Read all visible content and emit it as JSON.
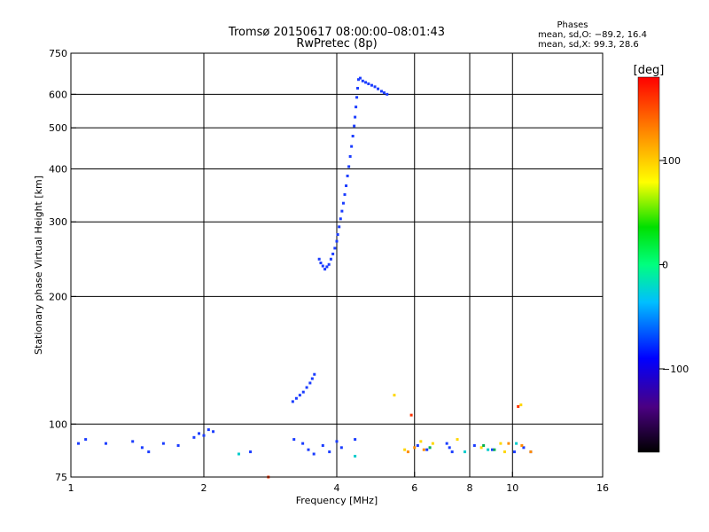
{
  "chart_data": {
    "type": "scatter",
    "title": "Tromsø 20150617 08:00:00–08:01:43",
    "subtitle": "RwPretec (8p)",
    "phases_header": {
      "title": "Phases",
      "line1": "mean, sd,O: −89.2, 16.4",
      "line2": "mean, sd,X:  99.3, 28.6"
    },
    "xlabel": "Frequency [MHz]",
    "ylabel": "Stationary phase Virtual Height [km]",
    "x_scale": "log",
    "y_scale": "log",
    "xlim": [
      1,
      16
    ],
    "ylim": [
      75,
      750
    ],
    "x_ticks": [
      1,
      2,
      4,
      6,
      8,
      10,
      16
    ],
    "x_tick_labels": [
      "1",
      "2",
      "4",
      "6",
      "8",
      "10",
      "16"
    ],
    "y_ticks": [
      75,
      100,
      200,
      300,
      400,
      500,
      600,
      750
    ],
    "y_tick_labels": [
      "75",
      "100",
      "200",
      "300",
      "400",
      "500",
      "600",
      "750"
    ],
    "grid": true,
    "colorbar": {
      "label": "[deg]",
      "range": [
        -180,
        180
      ],
      "tick_values": [
        100,
        0,
        -100
      ],
      "tick_labels": [
        "100",
        "0",
        "−100"
      ]
    },
    "traces": [
      {
        "color": "#1a3cff",
        "points": [
          [
            3.65,
            245
          ],
          [
            3.68,
            240
          ],
          [
            3.72,
            236
          ],
          [
            3.76,
            232
          ],
          [
            3.8,
            235
          ],
          [
            3.84,
            238
          ],
          [
            3.88,
            245
          ],
          [
            3.92,
            252
          ],
          [
            3.96,
            260
          ],
          [
            4.0,
            270
          ],
          [
            4.02,
            280
          ],
          [
            4.05,
            292
          ],
          [
            4.08,
            305
          ],
          [
            4.11,
            318
          ],
          [
            4.14,
            332
          ],
          [
            4.17,
            348
          ],
          [
            4.2,
            365
          ],
          [
            4.23,
            385
          ],
          [
            4.26,
            405
          ],
          [
            4.29,
            428
          ],
          [
            4.32,
            452
          ],
          [
            4.35,
            478
          ],
          [
            4.38,
            505
          ],
          [
            4.4,
            530
          ],
          [
            4.42,
            560
          ],
          [
            4.44,
            590
          ],
          [
            4.46,
            620
          ],
          [
            4.48,
            650
          ],
          [
            4.52,
            655
          ],
          [
            4.58,
            645
          ],
          [
            4.65,
            640
          ],
          [
            4.72,
            635
          ],
          [
            4.8,
            630
          ],
          [
            4.88,
            625
          ],
          [
            4.96,
            618
          ],
          [
            5.05,
            610
          ],
          [
            5.12,
            605
          ],
          [
            5.2,
            600
          ]
        ]
      },
      {
        "color": "#1a3cff",
        "points": [
          [
            3.18,
            113
          ],
          [
            3.24,
            115
          ],
          [
            3.3,
            117
          ],
          [
            3.36,
            119
          ],
          [
            3.42,
            122
          ],
          [
            3.48,
            125
          ],
          [
            3.52,
            128
          ],
          [
            3.56,
            131
          ]
        ]
      },
      {
        "color": "#1a3cff",
        "points": [
          [
            1.04,
            90
          ],
          [
            1.08,
            92
          ],
          [
            1.2,
            90
          ],
          [
            1.38,
            91
          ],
          [
            1.45,
            88
          ],
          [
            1.5,
            86
          ],
          [
            1.62,
            90
          ],
          [
            1.75,
            89
          ],
          [
            1.9,
            93
          ],
          [
            1.95,
            95
          ],
          [
            2.0,
            94
          ],
          [
            2.05,
            97
          ],
          [
            2.1,
            96
          ],
          [
            2.55,
            86
          ],
          [
            3.2,
            92
          ],
          [
            3.35,
            90
          ],
          [
            3.45,
            87
          ],
          [
            3.55,
            85
          ],
          [
            3.72,
            89
          ],
          [
            3.85,
            86
          ],
          [
            4.0,
            91
          ],
          [
            4.1,
            88
          ],
          [
            4.4,
            92
          ],
          [
            6.1,
            89
          ],
          [
            6.4,
            87
          ],
          [
            7.1,
            90
          ],
          [
            7.2,
            88
          ],
          [
            7.3,
            86
          ],
          [
            8.2,
            89
          ],
          [
            9.0,
            87
          ],
          [
            10.1,
            86
          ],
          [
            10.6,
            88
          ],
          [
            11.0,
            86
          ]
        ]
      },
      {
        "color": "#ff8c00",
        "points": [
          [
            5.8,
            86
          ],
          [
            6.0,
            88
          ],
          [
            6.3,
            87
          ],
          [
            9.8,
            90
          ],
          [
            10.5,
            89
          ],
          [
            11.0,
            86
          ]
        ]
      },
      {
        "color": "#ffd700",
        "points": [
          [
            5.7,
            87
          ],
          [
            6.2,
            91
          ],
          [
            6.6,
            90
          ],
          [
            7.5,
            92
          ],
          [
            8.5,
            88
          ],
          [
            9.4,
            90
          ],
          [
            9.6,
            86
          ],
          [
            10.45,
            111
          ],
          [
            5.4,
            117
          ]
        ]
      },
      {
        "color": "#00cccc",
        "points": [
          [
            2.4,
            85
          ],
          [
            4.4,
            84
          ],
          [
            7.8,
            86
          ],
          [
            8.8,
            87
          ],
          [
            10.2,
            90
          ]
        ]
      },
      {
        "color": "#00b050",
        "points": [
          [
            6.5,
            88
          ],
          [
            8.6,
            89
          ],
          [
            9.1,
            87
          ]
        ]
      },
      {
        "color": "#ff3300",
        "points": [
          [
            5.9,
            105
          ],
          [
            10.3,
            110
          ],
          [
            2.8,
            75
          ]
        ]
      }
    ]
  }
}
